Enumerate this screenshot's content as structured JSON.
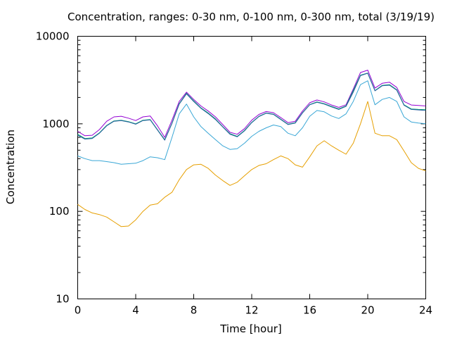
{
  "chart_data": {
    "type": "line",
    "title": "Concentration, ranges: 0-30 nm, 0-100 nm, 0-300 nm, total (3/19/19)",
    "xlabel": "Time [hour]",
    "ylabel": "Concentration",
    "xlim": [
      0,
      24
    ],
    "ylim": [
      10,
      10000
    ],
    "yscale": "log",
    "grid": false,
    "legend": "none",
    "x_ticks": [
      0,
      4,
      8,
      12,
      16,
      20,
      24
    ],
    "x_tick_labels": [
      "0",
      "4",
      "8",
      "12",
      "16",
      "20",
      "24"
    ],
    "y_ticks": [
      10,
      100,
      1000,
      10000
    ],
    "y_tick_labels": [
      "10",
      "100",
      "1000",
      "10000"
    ],
    "x": [
      0,
      0.5,
      1,
      1.5,
      2,
      2.5,
      3,
      3.5,
      4,
      4.5,
      5,
      5.5,
      6,
      6.5,
      7,
      7.5,
      8,
      8.5,
      9,
      9.5,
      10,
      10.5,
      11,
      11.5,
      12,
      12.5,
      13,
      13.5,
      14,
      14.5,
      15,
      15.5,
      16,
      16.5,
      17,
      17.5,
      18,
      18.5,
      19,
      19.5,
      20,
      20.5,
      21,
      21.5,
      22,
      22.5,
      23,
      23.5,
      24
    ],
    "series": [
      {
        "color": "#9400d3",
        "values": [
          820,
          730,
          740,
          860,
          1070,
          1200,
          1220,
          1160,
          1090,
          1200,
          1230,
          950,
          700,
          1100,
          1800,
          2300,
          1900,
          1600,
          1400,
          1200,
          980,
          800,
          760,
          880,
          1100,
          1280,
          1380,
          1340,
          1180,
          1030,
          1070,
          1400,
          1740,
          1870,
          1780,
          1640,
          1540,
          1650,
          2500,
          3850,
          4100,
          2560,
          2900,
          2990,
          2600,
          1800,
          1640,
          1620,
          1600
        ]
      },
      {
        "color": "#009e73",
        "values": [
          760,
          680,
          690,
          790,
          960,
          1080,
          1100,
          1060,
          1000,
          1100,
          1120,
          860,
          660,
          1020,
          1700,
          2230,
          1830,
          1520,
          1330,
          1140,
          930,
          770,
          720,
          840,
          1040,
          1220,
          1330,
          1290,
          1130,
          990,
          1030,
          1340,
          1660,
          1780,
          1700,
          1580,
          1480,
          1600,
          2400,
          3600,
          3800,
          2400,
          2750,
          2800,
          2450,
          1650,
          1480,
          1460,
          1450
        ]
      },
      {
        "color": "#2a5fa0",
        "values": [
          740,
          670,
          680,
          780,
          950,
          1070,
          1090,
          1050,
          990,
          1090,
          1110,
          850,
          650,
          1010,
          1680,
          2200,
          1800,
          1500,
          1310,
          1120,
          920,
          760,
          710,
          830,
          1030,
          1210,
          1320,
          1280,
          1120,
          980,
          1020,
          1330,
          1650,
          1760,
          1680,
          1560,
          1460,
          1580,
          2300,
          3550,
          3780,
          2380,
          2720,
          2760,
          2420,
          1630,
          1460,
          1440,
          1420
        ]
      },
      {
        "color": "#3aa7d6",
        "values": [
          430,
          400,
          380,
          380,
          370,
          360,
          345,
          350,
          355,
          380,
          420,
          410,
          390,
          700,
          1300,
          1680,
          1200,
          930,
          780,
          660,
          560,
          510,
          520,
          600,
          720,
          820,
          900,
          970,
          930,
          780,
          730,
          900,
          1220,
          1420,
          1370,
          1230,
          1150,
          1300,
          1800,
          2800,
          3100,
          1650,
          1900,
          2000,
          1800,
          1200,
          1050,
          1020,
          1000
        ]
      },
      {
        "color": "#e69f00",
        "values": [
          120,
          105,
          96,
          92,
          86,
          76,
          67,
          68,
          80,
          100,
          118,
          122,
          145,
          165,
          230,
          300,
          340,
          345,
          310,
          260,
          225,
          198,
          215,
          255,
          300,
          335,
          350,
          390,
          430,
          400,
          340,
          320,
          420,
          560,
          640,
          560,
          500,
          450,
          600,
          1000,
          1800,
          780,
          730,
          730,
          660,
          490,
          360,
          310,
          290
        ]
      }
    ]
  }
}
